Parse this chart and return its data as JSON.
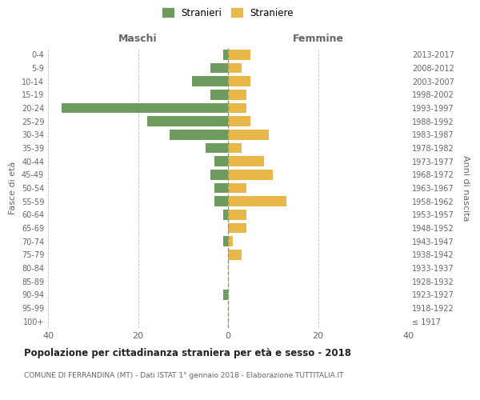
{
  "age_groups": [
    "100+",
    "95-99",
    "90-94",
    "85-89",
    "80-84",
    "75-79",
    "70-74",
    "65-69",
    "60-64",
    "55-59",
    "50-54",
    "45-49",
    "40-44",
    "35-39",
    "30-34",
    "25-29",
    "20-24",
    "15-19",
    "10-14",
    "5-9",
    "0-4"
  ],
  "birth_years": [
    "≤ 1917",
    "1918-1922",
    "1923-1927",
    "1928-1932",
    "1933-1937",
    "1938-1942",
    "1943-1947",
    "1948-1952",
    "1953-1957",
    "1958-1962",
    "1963-1967",
    "1968-1972",
    "1973-1977",
    "1978-1982",
    "1983-1987",
    "1988-1992",
    "1993-1997",
    "1998-2002",
    "2003-2007",
    "2008-2012",
    "2013-2017"
  ],
  "maschi": [
    0,
    0,
    1,
    0,
    0,
    0,
    1,
    0,
    1,
    3,
    3,
    4,
    3,
    5,
    13,
    18,
    37,
    4,
    8,
    4,
    1
  ],
  "femmine": [
    0,
    0,
    0,
    0,
    0,
    3,
    1,
    4,
    4,
    13,
    4,
    10,
    8,
    3,
    9,
    5,
    4,
    4,
    5,
    3,
    5
  ],
  "male_color": "#6e9b5e",
  "female_color": "#e8b84b",
  "center_line_color": "#999966",
  "grid_color": "#cccccc",
  "bg_color": "#ffffff",
  "text_color": "#666666",
  "title": "Popolazione per cittadinanza straniera per età e sesso - 2018",
  "subtitle": "COMUNE DI FERRANDINA (MT) - Dati ISTAT 1° gennaio 2018 - Elaborazione TUTTITALIA.IT",
  "xlabel_left": "Maschi",
  "xlabel_right": "Femmine",
  "ylabel_left": "Fasce di età",
  "ylabel_right": "Anni di nascita",
  "legend_male": "Stranieri",
  "legend_female": "Straniere",
  "xlim": 40,
  "bar_height": 0.75
}
